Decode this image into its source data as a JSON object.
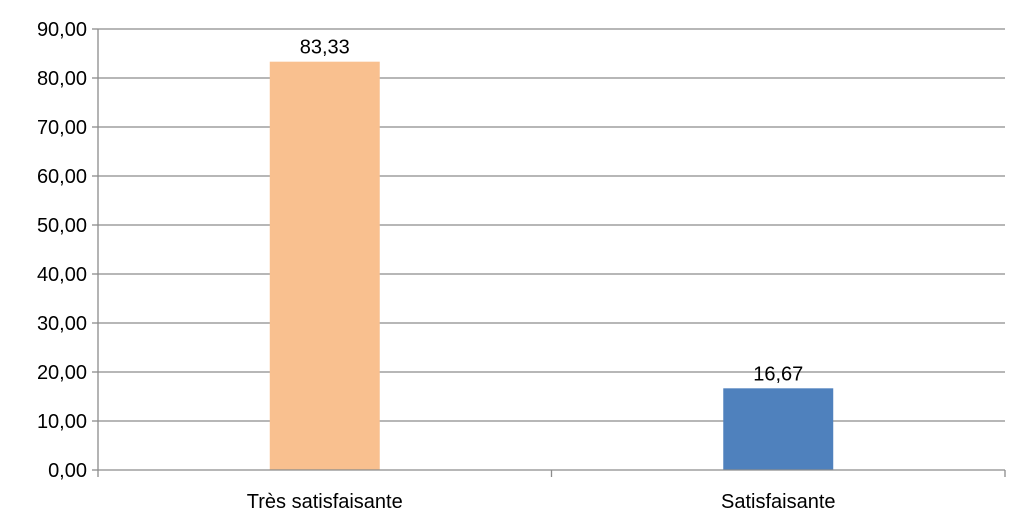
{
  "chart_data": {
    "type": "bar",
    "title": "",
    "xlabel": "",
    "ylabel": "",
    "categories": [
      "Très satisfaisante",
      "Satisfaisante"
    ],
    "values": [
      83.33,
      16.67
    ],
    "value_labels": [
      "83,33",
      "16,67"
    ],
    "bar_colors": [
      "#F9C08F",
      "#4F81BD"
    ],
    "ylim": [
      0,
      90
    ],
    "y_ticks": [
      0,
      10,
      20,
      30,
      40,
      50,
      60,
      70,
      80,
      90
    ],
    "y_tick_labels": [
      "0,00",
      "10,00",
      "20,00",
      "30,00",
      "40,00",
      "50,00",
      "60,00",
      "70,00",
      "80,00",
      "90,00"
    ],
    "grid": true,
    "legend": "none",
    "colors": {
      "gridline": "#8C8C8C",
      "axis": "#8C8C8C",
      "text": "#000000"
    }
  }
}
